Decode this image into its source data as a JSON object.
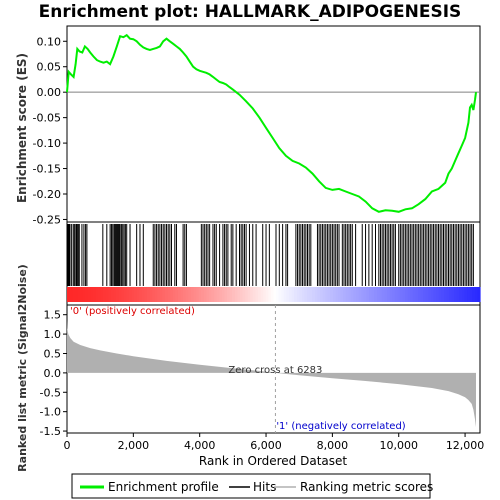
{
  "title": "Enrichment plot: HALLMARK_ADIPOGENESIS",
  "colors": {
    "es_line": "#00ee00",
    "hits": "#000000",
    "metric_fill": "#b0b0b0",
    "pos_label": "#dd0000",
    "neg_label": "#0000cc",
    "zero_line": "#808080",
    "pos_bar": "#ff0000",
    "neg_bar": "#0000ff"
  },
  "chart_data": [
    {
      "type": "line",
      "name": "enrichment-profile",
      "ylabel": "Enrichment score (ES)",
      "xlim": [
        0,
        12450
      ],
      "ylim": [
        -0.255,
        0.13
      ],
      "yticks": [
        0.1,
        0.05,
        0.0,
        -0.05,
        -0.1,
        -0.15,
        -0.2,
        -0.25
      ],
      "ytick_labels": [
        "0.10",
        "0.05",
        "0.00",
        "-0.05",
        "-0.10",
        "-0.15",
        "-0.20",
        "-0.25"
      ],
      "series": [
        {
          "name": "Enrichment profile",
          "x": [
            0,
            50,
            120,
            200,
            260,
            310,
            380,
            460,
            540,
            620,
            700,
            800,
            900,
            1000,
            1100,
            1200,
            1300,
            1400,
            1500,
            1600,
            1700,
            1800,
            1900,
            2000,
            2100,
            2200,
            2300,
            2400,
            2500,
            2600,
            2700,
            2800,
            2900,
            3000,
            3100,
            3200,
            3300,
            3400,
            3500,
            3600,
            3700,
            3800,
            3900,
            4000,
            4100,
            4200,
            4300,
            4400,
            4500,
            4600,
            4700,
            4800,
            4900,
            5000,
            5200,
            5400,
            5600,
            5800,
            6000,
            6200,
            6400,
            6600,
            6800,
            7000,
            7200,
            7400,
            7600,
            7800,
            8000,
            8200,
            8400,
            8600,
            8800,
            9000,
            9200,
            9400,
            9600,
            9800,
            10000,
            10200,
            10400,
            10600,
            10800,
            11000,
            11200,
            11400,
            11500,
            11600,
            11700,
            11800,
            11900,
            12000,
            12100,
            12150,
            12200,
            12250,
            12300,
            12330
          ],
          "values": [
            0.0,
            0.04,
            0.035,
            0.03,
            0.055,
            0.085,
            0.08,
            0.078,
            0.09,
            0.085,
            0.078,
            0.07,
            0.063,
            0.06,
            0.058,
            0.06,
            0.055,
            0.07,
            0.09,
            0.11,
            0.108,
            0.112,
            0.105,
            0.104,
            0.1,
            0.093,
            0.088,
            0.085,
            0.083,
            0.085,
            0.087,
            0.09,
            0.1,
            0.105,
            0.1,
            0.095,
            0.09,
            0.085,
            0.078,
            0.07,
            0.06,
            0.05,
            0.045,
            0.042,
            0.04,
            0.038,
            0.035,
            0.03,
            0.025,
            0.02,
            0.018,
            0.015,
            0.01,
            0.005,
            -0.005,
            -0.018,
            -0.032,
            -0.05,
            -0.07,
            -0.09,
            -0.11,
            -0.125,
            -0.135,
            -0.14,
            -0.148,
            -0.16,
            -0.175,
            -0.188,
            -0.192,
            -0.19,
            -0.195,
            -0.2,
            -0.205,
            -0.215,
            -0.228,
            -0.235,
            -0.232,
            -0.233,
            -0.235,
            -0.23,
            -0.228,
            -0.22,
            -0.21,
            -0.195,
            -0.19,
            -0.178,
            -0.16,
            -0.15,
            -0.135,
            -0.12,
            -0.105,
            -0.09,
            -0.06,
            -0.03,
            -0.025,
            -0.035,
            -0.015,
            0.0
          ]
        }
      ]
    },
    {
      "type": "line",
      "name": "ranked-metric",
      "xlabel": "Rank in Ordered Dataset",
      "ylabel": "Ranked list metric (Signal2Noise)",
      "xlim": [
        0,
        12450
      ],
      "ylim": [
        -1.55,
        1.75
      ],
      "xticks": [
        0,
        2000,
        4000,
        6000,
        8000,
        10000,
        12000
      ],
      "xtick_labels": [
        "0",
        "2,000",
        "4,000",
        "6,000",
        "8,000",
        "10,000",
        "12,000"
      ],
      "yticks": [
        1.5,
        1.0,
        0.5,
        0.0,
        -0.5,
        -1.0,
        -1.5
      ],
      "ytick_labels": [
        "1.5",
        "1.0",
        "0.5",
        "0.0",
        "-0.5",
        "-1.0",
        "-1.5"
      ],
      "series": [
        {
          "name": "Ranking metric scores",
          "x": [
            0,
            10,
            40,
            100,
            200,
            400,
            700,
            1000,
            1500,
            2000,
            3000,
            4000,
            5000,
            5800,
            6283,
            7000,
            8000,
            9000,
            10000,
            11000,
            11500,
            11800,
            12000,
            12100,
            12200,
            12250,
            12300,
            12330
          ],
          "values": [
            1.35,
            1.15,
            1.0,
            0.9,
            0.8,
            0.72,
            0.64,
            0.58,
            0.5,
            0.43,
            0.31,
            0.21,
            0.12,
            0.05,
            0.0,
            -0.06,
            -0.14,
            -0.21,
            -0.29,
            -0.39,
            -0.47,
            -0.55,
            -0.63,
            -0.7,
            -0.8,
            -0.95,
            -1.2,
            -1.4
          ]
        }
      ],
      "annotations": {
        "zero_cross": "Zero cross at 6283",
        "zero_cross_rank": 6283,
        "pos_label": "'0' (positively correlated)",
        "neg_label": "'1' (negatively correlated)"
      }
    }
  ],
  "hits": [
    30,
    60,
    90,
    140,
    190,
    230,
    270,
    290,
    310,
    340,
    370,
    450,
    510,
    560,
    600,
    1080,
    1200,
    1300,
    1340,
    1380,
    1420,
    1450,
    1480,
    1510,
    1540,
    1570,
    1600,
    1640,
    1680,
    1720,
    1760,
    1800,
    1900,
    2100,
    2200,
    2300,
    2600,
    2650,
    2700,
    2750,
    2800,
    2850,
    2900,
    2950,
    3000,
    3050,
    3100,
    3150,
    3250,
    3300,
    3500,
    3550,
    3600,
    4050,
    4100,
    4150,
    4200,
    4250,
    4300,
    4400,
    4450,
    4500,
    4600,
    4700,
    4750,
    4800,
    4850,
    4950,
    5000,
    5100,
    5200,
    5250,
    5300,
    5350,
    5400,
    5500,
    5600,
    5700,
    5900,
    6000,
    6100,
    6300,
    6400,
    6500,
    6600,
    6650,
    6900,
    6950,
    7000,
    7050,
    7100,
    7150,
    7200,
    7250,
    7300,
    7350,
    7550,
    7600,
    7650,
    7700,
    7750,
    7800,
    7850,
    7900,
    7950,
    8000,
    8050,
    8100,
    8150,
    8200,
    8300,
    8350,
    8400,
    8450,
    8500,
    8550,
    8600,
    8700,
    8900,
    9000,
    9100,
    9200,
    9300,
    9400,
    9450,
    9500,
    9550,
    9600,
    9650,
    9700,
    9750,
    9800,
    9850,
    9900,
    10000,
    10050,
    10100,
    10150,
    10200,
    10250,
    10300,
    10350,
    10400,
    10450,
    10500,
    10550,
    10600,
    10650,
    10700,
    10750,
    10800,
    10850,
    10900,
    10950,
    11000,
    11050,
    11100,
    11150,
    11200,
    11250,
    11300,
    11350,
    11400,
    11450,
    11500,
    11550,
    11600,
    11650,
    11700,
    11750,
    11800,
    11850,
    11900,
    11950,
    12000,
    12050,
    12100,
    12150,
    12200,
    12250
  ],
  "legend": {
    "items": [
      {
        "label": "Enrichment profile",
        "color": "#00ee00"
      },
      {
        "label": "Hits",
        "color": "#000000"
      },
      {
        "label": "Ranking metric scores",
        "color": "#b0b0b0"
      }
    ]
  }
}
